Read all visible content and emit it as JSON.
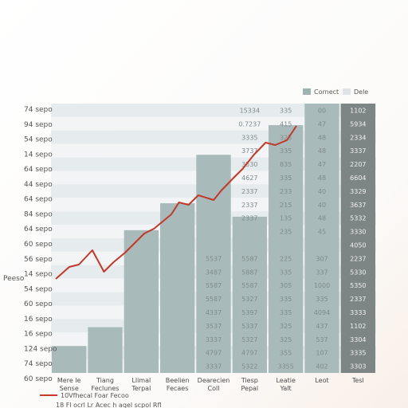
{
  "chart_data": {
    "type": "bar",
    "title": "",
    "ylabel": "Peeso",
    "y_tick_labels": [
      "74 sepo",
      "94 sepo",
      "54 sepo",
      "14 sepo",
      "64 sepo",
      "44 sepo",
      "64 sepo",
      "84 sepo",
      "64 sepo",
      "60 sepo",
      "56 sepo",
      "14 sepo",
      "54 sepo",
      "60 sepo",
      "16 sepo",
      "16 sepo",
      "124 sepo",
      "74 sepo",
      "60 sepo"
    ],
    "categories": [
      "Mere le Sense",
      "Tiang Feclunes",
      "Llimal Terpal",
      "Beelien Fecaes",
      "Dearecien Coll",
      "Tiesp Pepal",
      "Leatie Yalt",
      "Leot",
      "Tesl"
    ],
    "bar_levels": [
      0.1,
      0.17,
      0.53,
      0.63,
      0.81,
      0.58,
      0.92,
      1.0,
      1.0
    ],
    "table_rows": [
      [
        "",
        "",
        "",
        "15334",
        "335",
        "00",
        "1102"
      ],
      [
        "",
        "",
        "",
        "0.7237",
        "415",
        "47",
        "5934"
      ],
      [
        "",
        "",
        "",
        "3335",
        "325",
        "48",
        "2334"
      ],
      [
        "",
        "",
        "",
        "3737",
        "335",
        "48",
        "3337"
      ],
      [
        "",
        "",
        "",
        "3530",
        "835",
        "47",
        "2207"
      ],
      [
        "",
        "",
        "",
        "4627",
        "335",
        "48",
        "6604"
      ],
      [
        "",
        "",
        "",
        "2337",
        "233",
        "40",
        "3329"
      ],
      [
        "",
        "",
        "",
        "2337",
        "215",
        "40",
        "3637"
      ],
      [
        "",
        "",
        "",
        "2337",
        "135",
        "48",
        "5332"
      ],
      [
        "",
        "",
        "",
        "",
        "235",
        "45",
        "3330"
      ],
      [
        "",
        "",
        "",
        "",
        "",
        "",
        "4050"
      ],
      [
        "",
        "",
        "5537",
        "5587",
        "225",
        "307",
        "2237"
      ],
      [
        "",
        "",
        "3487",
        "5887",
        "335",
        "337",
        "5330"
      ],
      [
        "",
        "",
        "5587",
        "5587",
        "305",
        "1000",
        "5350"
      ],
      [
        "",
        "",
        "5587",
        "5327",
        "335",
        "335",
        "2337"
      ],
      [
        "",
        "",
        "4337",
        "5397",
        "335",
        "4094",
        "3333"
      ],
      [
        "",
        "",
        "3537",
        "5337",
        "325",
        "437",
        "1102"
      ],
      [
        "",
        "",
        "3337",
        "5327",
        "325",
        "537",
        "3304"
      ],
      [
        "",
        "",
        "4797",
        "4797",
        "355",
        "107",
        "3335"
      ],
      [
        "",
        "",
        "3337",
        "5322",
        "3355",
        "402",
        "3303"
      ]
    ],
    "line": {
      "name": "10Vfhecal Foar Fecoo",
      "x": [
        0.0,
        0.35,
        0.6,
        0.95,
        1.25,
        1.5,
        1.8,
        2.3,
        2.55,
        3.0,
        3.2,
        3.45,
        3.7,
        4.1,
        4.3,
        4.6,
        4.85,
        5.15,
        5.45,
        5.7,
        6.0,
        6.25
      ],
      "y": [
        0.0,
        0.05,
        0.06,
        0.12,
        0.03,
        0.07,
        0.11,
        0.19,
        0.21,
        0.27,
        0.32,
        0.31,
        0.35,
        0.33,
        0.37,
        0.42,
        0.46,
        0.52,
        0.57,
        0.56,
        0.58,
        0.64
      ]
    },
    "legend": {
      "items": [
        {
          "label": "Cornect",
          "color": "#9fb3b1"
        },
        {
          "label": "Dele",
          "color": "#dfe3e8"
        }
      ],
      "line_label": "10Vfhecal Foar Fecoo",
      "line_sublabel": "18 Fl ocrl Lr Acec h aqel scpol Rfl",
      "position": "top-right"
    },
    "colors": {
      "bar": "#a8bbba",
      "bar_dark": "#7e8585",
      "band_light": "#e6ebee",
      "band_alt": "#f2f4f6",
      "line": "#c0392b"
    },
    "grid": true
  }
}
